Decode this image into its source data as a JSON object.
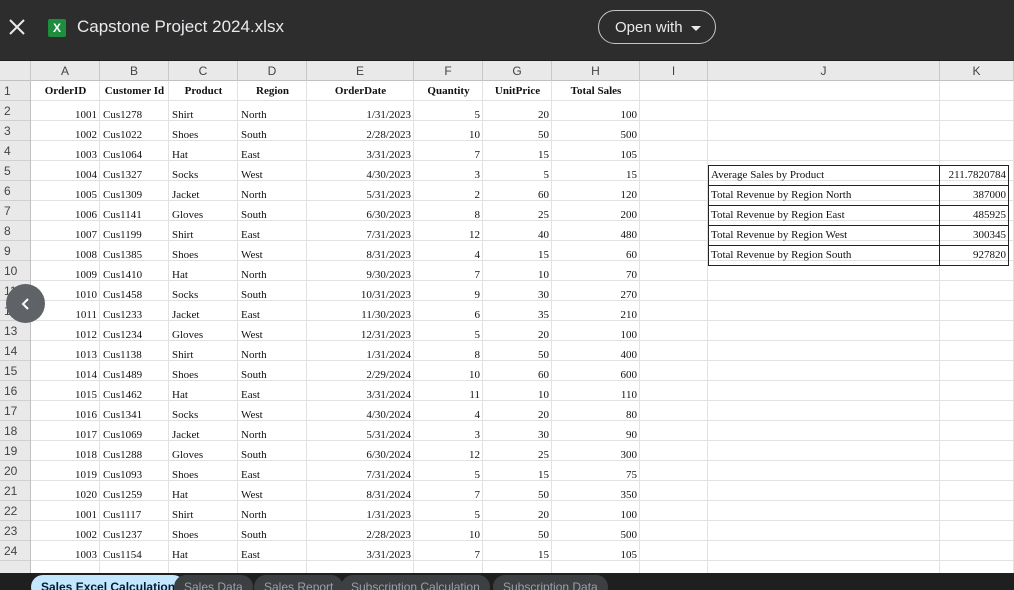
{
  "app": {
    "file_title": "Capstone Project 2024.xlsx",
    "open_with_label": "Open with",
    "file_icon_letter": "X"
  },
  "columns": [
    "A",
    "B",
    "C",
    "D",
    "E",
    "F",
    "G",
    "H",
    "I",
    "J",
    "K"
  ],
  "row_numbers": [
    "1",
    "2",
    "3",
    "4",
    "5",
    "6",
    "7",
    "8",
    "9",
    "10",
    "11",
    "12",
    "13",
    "14",
    "15",
    "16",
    "17",
    "18",
    "19",
    "20",
    "21",
    "22",
    "23",
    "24"
  ],
  "table": {
    "headers": [
      "OrderID",
      "Customer Id",
      "Product",
      "Region",
      "OrderDate",
      "Quantity",
      "UnitPrice",
      "Total Sales"
    ],
    "rows": [
      [
        "1001",
        "Cus1278",
        "Shirt",
        "North",
        "1/31/2023",
        "5",
        "20",
        "100"
      ],
      [
        "1002",
        "Cus1022",
        "Shoes",
        "South",
        "2/28/2023",
        "10",
        "50",
        "500"
      ],
      [
        "1003",
        "Cus1064",
        "Hat",
        "East",
        "3/31/2023",
        "7",
        "15",
        "105"
      ],
      [
        "1004",
        "Cus1327",
        "Socks",
        "West",
        "4/30/2023",
        "3",
        "5",
        "15"
      ],
      [
        "1005",
        "Cus1309",
        "Jacket",
        "North",
        "5/31/2023",
        "2",
        "60",
        "120"
      ],
      [
        "1006",
        "Cus1141",
        "Gloves",
        "South",
        "6/30/2023",
        "8",
        "25",
        "200"
      ],
      [
        "1007",
        "Cus1199",
        "Shirt",
        "East",
        "7/31/2023",
        "12",
        "40",
        "480"
      ],
      [
        "1008",
        "Cus1385",
        "Shoes",
        "West",
        "8/31/2023",
        "4",
        "15",
        "60"
      ],
      [
        "1009",
        "Cus1410",
        "Hat",
        "North",
        "9/30/2023",
        "7",
        "10",
        "70"
      ],
      [
        "1010",
        "Cus1458",
        "Socks",
        "South",
        "10/31/2023",
        "9",
        "30",
        "270"
      ],
      [
        "1011",
        "Cus1233",
        "Jacket",
        "East",
        "11/30/2023",
        "6",
        "35",
        "210"
      ],
      [
        "1012",
        "Cus1234",
        "Gloves",
        "West",
        "12/31/2023",
        "5",
        "20",
        "100"
      ],
      [
        "1013",
        "Cus1138",
        "Shirt",
        "North",
        "1/31/2024",
        "8",
        "50",
        "400"
      ],
      [
        "1014",
        "Cus1489",
        "Shoes",
        "South",
        "2/29/2024",
        "10",
        "60",
        "600"
      ],
      [
        "1015",
        "Cus1462",
        "Hat",
        "East",
        "3/31/2024",
        "11",
        "10",
        "110"
      ],
      [
        "1016",
        "Cus1341",
        "Socks",
        "West",
        "4/30/2024",
        "4",
        "20",
        "80"
      ],
      [
        "1017",
        "Cus1069",
        "Jacket",
        "North",
        "5/31/2024",
        "3",
        "30",
        "90"
      ],
      [
        "1018",
        "Cus1288",
        "Gloves",
        "South",
        "6/30/2024",
        "12",
        "25",
        "300"
      ],
      [
        "1019",
        "Cus1093",
        "Shoes",
        "East",
        "7/31/2024",
        "5",
        "15",
        "75"
      ],
      [
        "1020",
        "Cus1259",
        "Hat",
        "West",
        "8/31/2024",
        "7",
        "50",
        "350"
      ],
      [
        "1001",
        "Cus1117",
        "Shirt",
        "North",
        "1/31/2023",
        "5",
        "20",
        "100"
      ],
      [
        "1002",
        "Cus1237",
        "Shoes",
        "South",
        "2/28/2023",
        "10",
        "50",
        "500"
      ],
      [
        "1003",
        "Cus1154",
        "Hat",
        "East",
        "3/31/2023",
        "7",
        "15",
        "105"
      ]
    ]
  },
  "summary": [
    {
      "label": "Average Sales by Product",
      "value": "211.7820784"
    },
    {
      "label": "Total Revenue by Region North",
      "value": "387000"
    },
    {
      "label": "Total Revenue by Region East",
      "value": "485925"
    },
    {
      "label": "Total Revenue by Region West",
      "value": "300345"
    },
    {
      "label": "Total Revenue by Region South",
      "value": "927820"
    }
  ],
  "tabs": [
    {
      "label": "Sales Excel Calculation",
      "active": true
    },
    {
      "label": "Sales Data",
      "active": false
    },
    {
      "label": "Sales Report",
      "active": false
    },
    {
      "label": "Subscription Calculation",
      "active": false
    },
    {
      "label": "Subscription Data",
      "active": false
    }
  ]
}
